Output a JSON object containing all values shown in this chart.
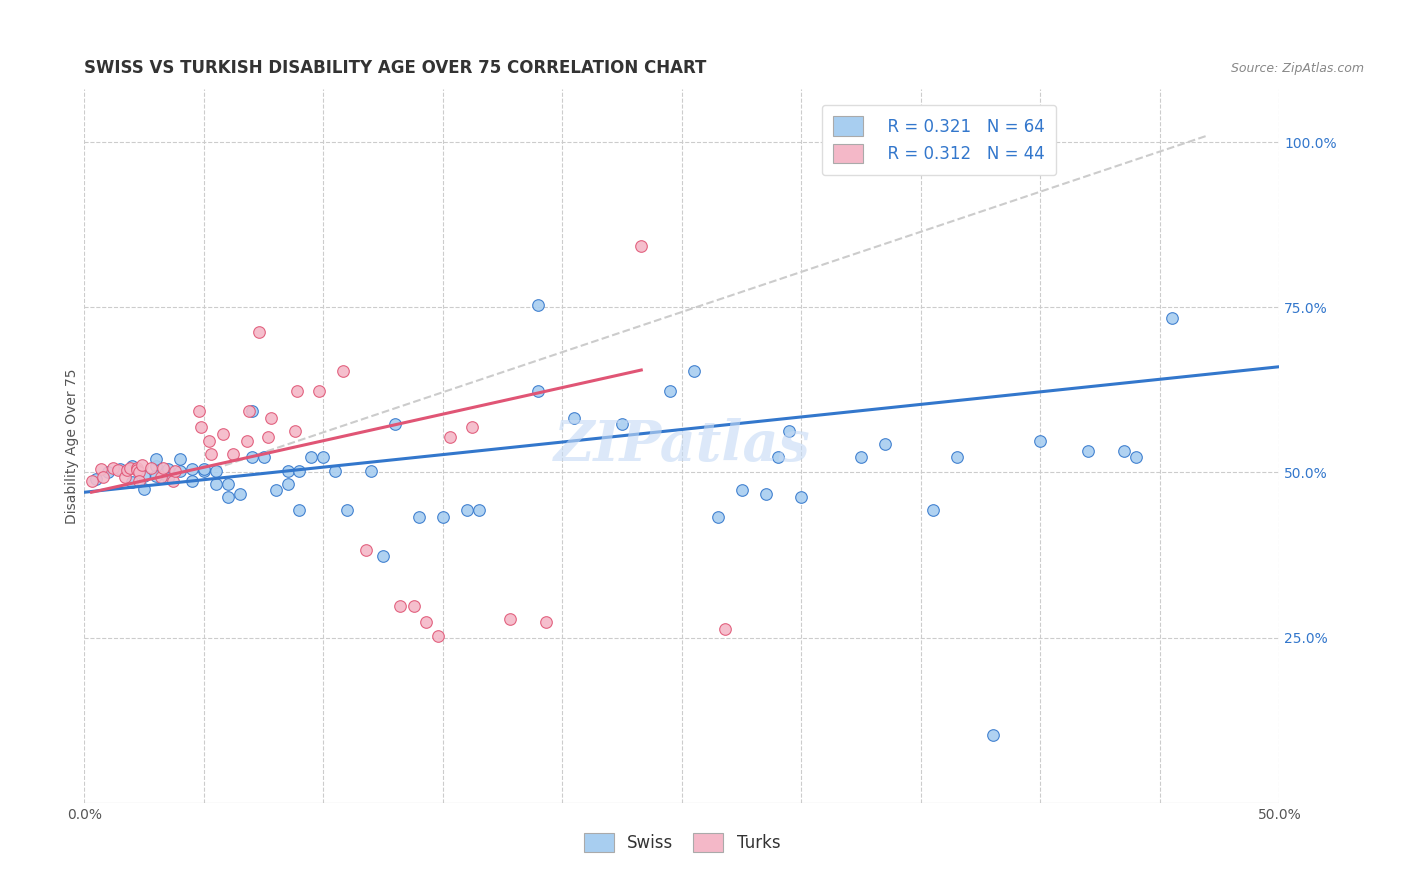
{
  "title": "SWISS VS TURKISH DISABILITY AGE OVER 75 CORRELATION CHART",
  "source": "Source: ZipAtlas.com",
  "ylabel": "Disability Age Over 75",
  "right_yticks": [
    "100.0%",
    "75.0%",
    "50.0%",
    "25.0%"
  ],
  "right_ytick_vals": [
    1.0,
    0.75,
    0.5,
    0.25
  ],
  "xlim": [
    0.0,
    0.5
  ],
  "ylim": [
    0.0,
    1.08
  ],
  "legend_swiss_r": "R = 0.321",
  "legend_swiss_n": "N = 64",
  "legend_turks_r": "R = 0.312",
  "legend_turks_n": "N = 44",
  "swiss_color": "#a8cef0",
  "turks_color": "#f4b8c8",
  "swiss_line_color": "#3377cc",
  "turks_line_color": "#e05575",
  "dashed_line_color": "#cccccc",
  "watermark": "ZIPatlas",
  "swiss_scatter_x": [
    0.005,
    0.01,
    0.015,
    0.02,
    0.02,
    0.025,
    0.025,
    0.03,
    0.03,
    0.03,
    0.035,
    0.035,
    0.04,
    0.04,
    0.045,
    0.045,
    0.05,
    0.05,
    0.055,
    0.055,
    0.06,
    0.06,
    0.065,
    0.07,
    0.07,
    0.075,
    0.08,
    0.085,
    0.085,
    0.09,
    0.09,
    0.095,
    0.1,
    0.105,
    0.11,
    0.12,
    0.125,
    0.13,
    0.14,
    0.15,
    0.16,
    0.165,
    0.19,
    0.19,
    0.205,
    0.225,
    0.245,
    0.255,
    0.265,
    0.275,
    0.285,
    0.29,
    0.295,
    0.3,
    0.325,
    0.335,
    0.355,
    0.365,
    0.38,
    0.4,
    0.42,
    0.435,
    0.44,
    0.455
  ],
  "swiss_scatter_y": [
    0.49,
    0.5,
    0.505,
    0.51,
    0.485,
    0.495,
    0.475,
    0.51,
    0.52,
    0.495,
    0.505,
    0.492,
    0.52,
    0.502,
    0.505,
    0.487,
    0.502,
    0.505,
    0.502,
    0.483,
    0.463,
    0.483,
    0.467,
    0.523,
    0.593,
    0.523,
    0.473,
    0.502,
    0.483,
    0.443,
    0.502,
    0.523,
    0.523,
    0.502,
    0.443,
    0.502,
    0.373,
    0.573,
    0.433,
    0.433,
    0.443,
    0.443,
    0.623,
    0.753,
    0.583,
    0.573,
    0.623,
    0.653,
    0.433,
    0.473,
    0.467,
    0.523,
    0.563,
    0.463,
    0.523,
    0.543,
    0.443,
    0.523,
    0.103,
    0.548,
    0.533,
    0.533,
    0.523,
    0.733
  ],
  "turks_scatter_x": [
    0.003,
    0.007,
    0.008,
    0.012,
    0.014,
    0.017,
    0.018,
    0.019,
    0.022,
    0.022,
    0.023,
    0.023,
    0.024,
    0.028,
    0.032,
    0.033,
    0.037,
    0.038,
    0.048,
    0.049,
    0.052,
    0.053,
    0.058,
    0.062,
    0.068,
    0.069,
    0.073,
    0.077,
    0.078,
    0.088,
    0.089,
    0.098,
    0.108,
    0.118,
    0.132,
    0.138,
    0.143,
    0.148,
    0.153,
    0.162,
    0.178,
    0.193,
    0.233,
    0.268
  ],
  "turks_scatter_y": [
    0.487,
    0.505,
    0.493,
    0.507,
    0.503,
    0.493,
    0.503,
    0.507,
    0.507,
    0.503,
    0.501,
    0.487,
    0.512,
    0.507,
    0.493,
    0.507,
    0.487,
    0.502,
    0.593,
    0.568,
    0.548,
    0.528,
    0.558,
    0.528,
    0.548,
    0.593,
    0.713,
    0.553,
    0.583,
    0.563,
    0.623,
    0.623,
    0.653,
    0.383,
    0.298,
    0.298,
    0.273,
    0.253,
    0.553,
    0.568,
    0.278,
    0.273,
    0.843,
    0.263
  ],
  "swiss_line_x": [
    0.0,
    0.5
  ],
  "swiss_line_y": [
    0.47,
    0.66
  ],
  "turks_line_x": [
    0.003,
    0.233
  ],
  "turks_line_y": [
    0.47,
    0.655
  ],
  "dashed_line_x": [
    0.05,
    0.47
  ],
  "dashed_line_y": [
    0.5,
    1.01
  ],
  "grid_yticks": [
    0.25,
    0.5,
    0.75,
    1.0
  ],
  "grid_xticks": [
    0.0,
    0.05,
    0.1,
    0.15,
    0.2,
    0.25,
    0.3,
    0.35,
    0.4,
    0.45,
    0.5
  ],
  "background_color": "#ffffff",
  "title_fontsize": 12,
  "axis_label_fontsize": 10,
  "tick_fontsize": 10,
  "legend_fontsize": 12,
  "source_fontsize": 9
}
